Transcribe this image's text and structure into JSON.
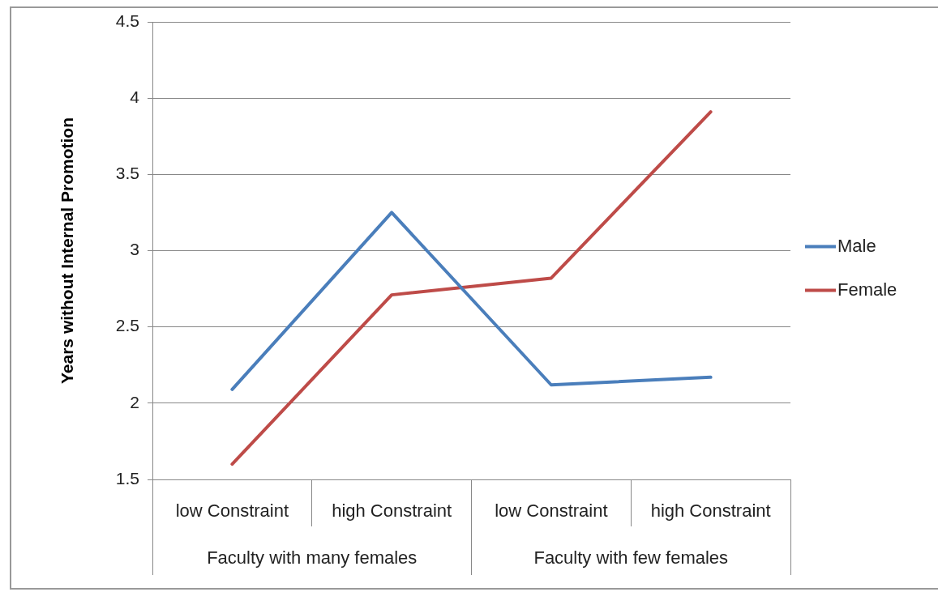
{
  "chart_data": {
    "type": "line",
    "ylabel": "Years without Internal Promotion",
    "categories": [
      "low Constraint",
      "high Constraint",
      "low Constraint",
      "high Constraint"
    ],
    "annotations": [
      "Faculty with many females",
      "Faculty with few females"
    ],
    "series": [
      {
        "name": "Male",
        "color": "#4a7ebb",
        "values": [
          2.09,
          3.25,
          2.12,
          2.17
        ]
      },
      {
        "name": "Female",
        "color": "#be4b48",
        "values": [
          1.6,
          2.71,
          2.82,
          3.91
        ]
      }
    ],
    "ylim": [
      1.5,
      4.5
    ],
    "yticks": [
      1.5,
      2,
      2.5,
      3,
      3.5,
      4,
      4.5
    ],
    "grid": "y",
    "legend": "right",
    "marker": "none",
    "line_style": "solid"
  }
}
